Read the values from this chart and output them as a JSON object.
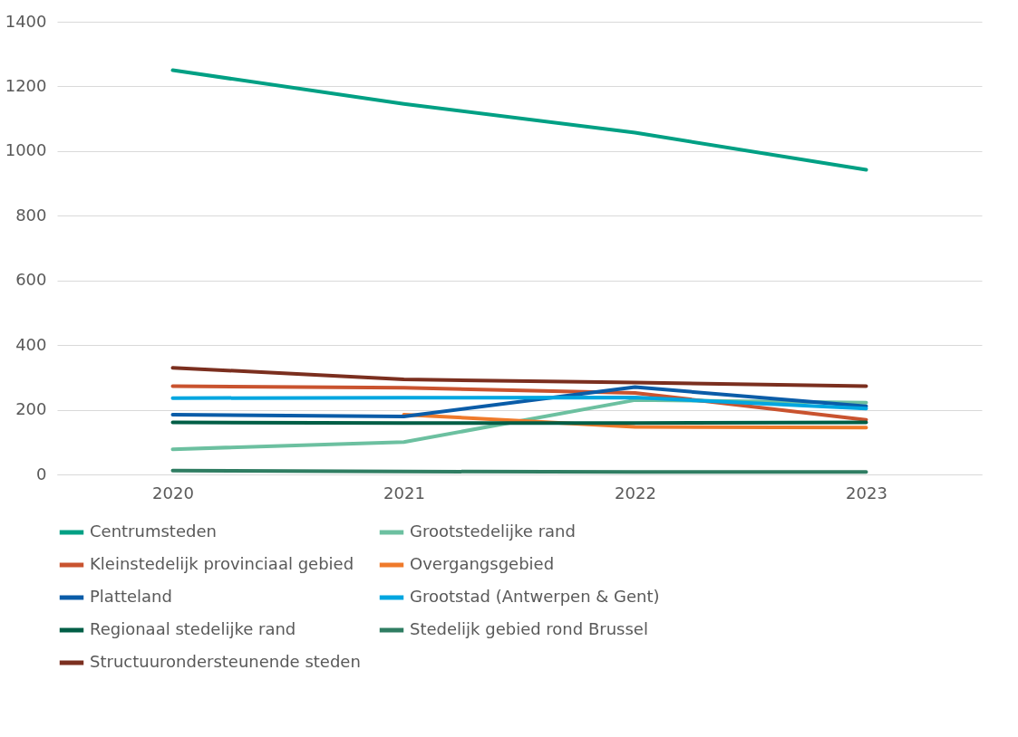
{
  "chart_data": {
    "type": "line",
    "categories": [
      "2020",
      "2021",
      "2022",
      "2023"
    ],
    "ylim": [
      0,
      1400
    ],
    "yticks": [
      0,
      200,
      400,
      600,
      800,
      1000,
      1200,
      1400
    ],
    "grid": "y",
    "legend": "bottom",
    "marker": "none",
    "line_style": "solid",
    "series": [
      {
        "name": "Centrumsteden",
        "color": "#00a084",
        "values": [
          1250,
          1146,
          1057,
          942
        ]
      },
      {
        "name": "Grootstedelijke rand",
        "color": "#6cc0a0",
        "values": [
          78,
          100,
          230,
          222
        ]
      },
      {
        "name": "Kleinstedelijk provinciaal gebied",
        "color": "#c9532f",
        "values": [
          273,
          268,
          252,
          169
        ]
      },
      {
        "name": "Overgangsgebied",
        "color": "#ef7a2b",
        "values": [
          null,
          185,
          147,
          145
        ]
      },
      {
        "name": "Platteland",
        "color": "#0a5ca8",
        "values": [
          185,
          179,
          270,
          211
        ]
      },
      {
        "name": "Grootstad (Antwerpen & Gent)",
        "color": "#00a6e0",
        "values": [
          236,
          237,
          238,
          204
        ]
      },
      {
        "name": "Regionaal stedelijke rand",
        "color": "#005e46",
        "values": [
          161,
          159,
          159,
          161
        ]
      },
      {
        "name": "Stedelijk gebied rond Brussel",
        "color": "#2f7d62",
        "values": [
          12,
          9,
          8,
          8
        ]
      },
      {
        "name": "Structuurondersteunende steden",
        "color": "#7b2f1f",
        "values": [
          330,
          294,
          284,
          273
        ]
      }
    ]
  }
}
